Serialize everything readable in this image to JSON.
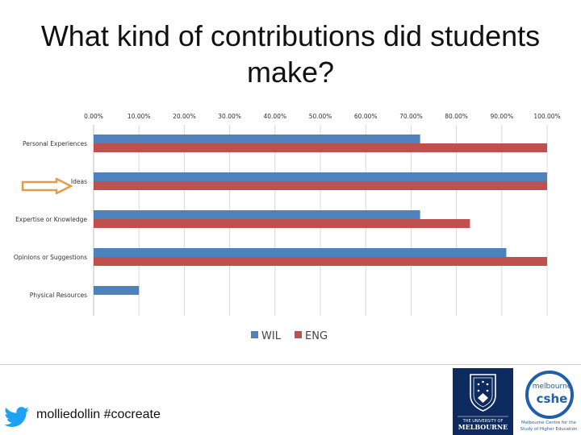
{
  "title": "What kind of contributions did students make?",
  "footer": {
    "handle": "molliedollin #cocreate",
    "university_logo_text": [
      "THE UNIVERSITY OF",
      "MELBOURNE"
    ],
    "cshe_logo_text": [
      "melbourne",
      "cshe",
      "Melbourne Centre for the",
      "Study of Higher Education"
    ]
  },
  "colors": {
    "wil": "#4f81bd",
    "eng": "#c0504d",
    "arrow": "#e39a4a",
    "unimelb_navy": "#0d2b5e",
    "twitter": "#1da1f2"
  },
  "icons": [
    "twitter-bird-icon",
    "university-crest-icon",
    "highlight-arrow-icon"
  ],
  "chart_data": {
    "type": "bar",
    "orientation": "horizontal",
    "title": "",
    "categories": [
      "Personal Experiences",
      "Ideas",
      "Expertise or Knowledge",
      "Opinions or Suggestions",
      "Physical Resources"
    ],
    "series": [
      {
        "name": "WIL",
        "color": "#4f81bd",
        "values": [
          72,
          100,
          72,
          91,
          10
        ]
      },
      {
        "name": "ENG",
        "color": "#c0504d",
        "values": [
          100,
          100,
          83,
          100,
          0
        ]
      }
    ],
    "xlim": [
      0,
      100
    ],
    "x_ticks": [
      "0.00%",
      "10.00%",
      "20.00%",
      "30.00%",
      "40.00%",
      "50.00%",
      "60.00%",
      "70.00%",
      "80.00%",
      "90.00%",
      "100.00%"
    ],
    "x_axis_position": "top",
    "grid": true,
    "legend": {
      "position": "bottom",
      "entries": [
        "WIL",
        "ENG"
      ]
    },
    "highlighted_category": "Ideas"
  }
}
